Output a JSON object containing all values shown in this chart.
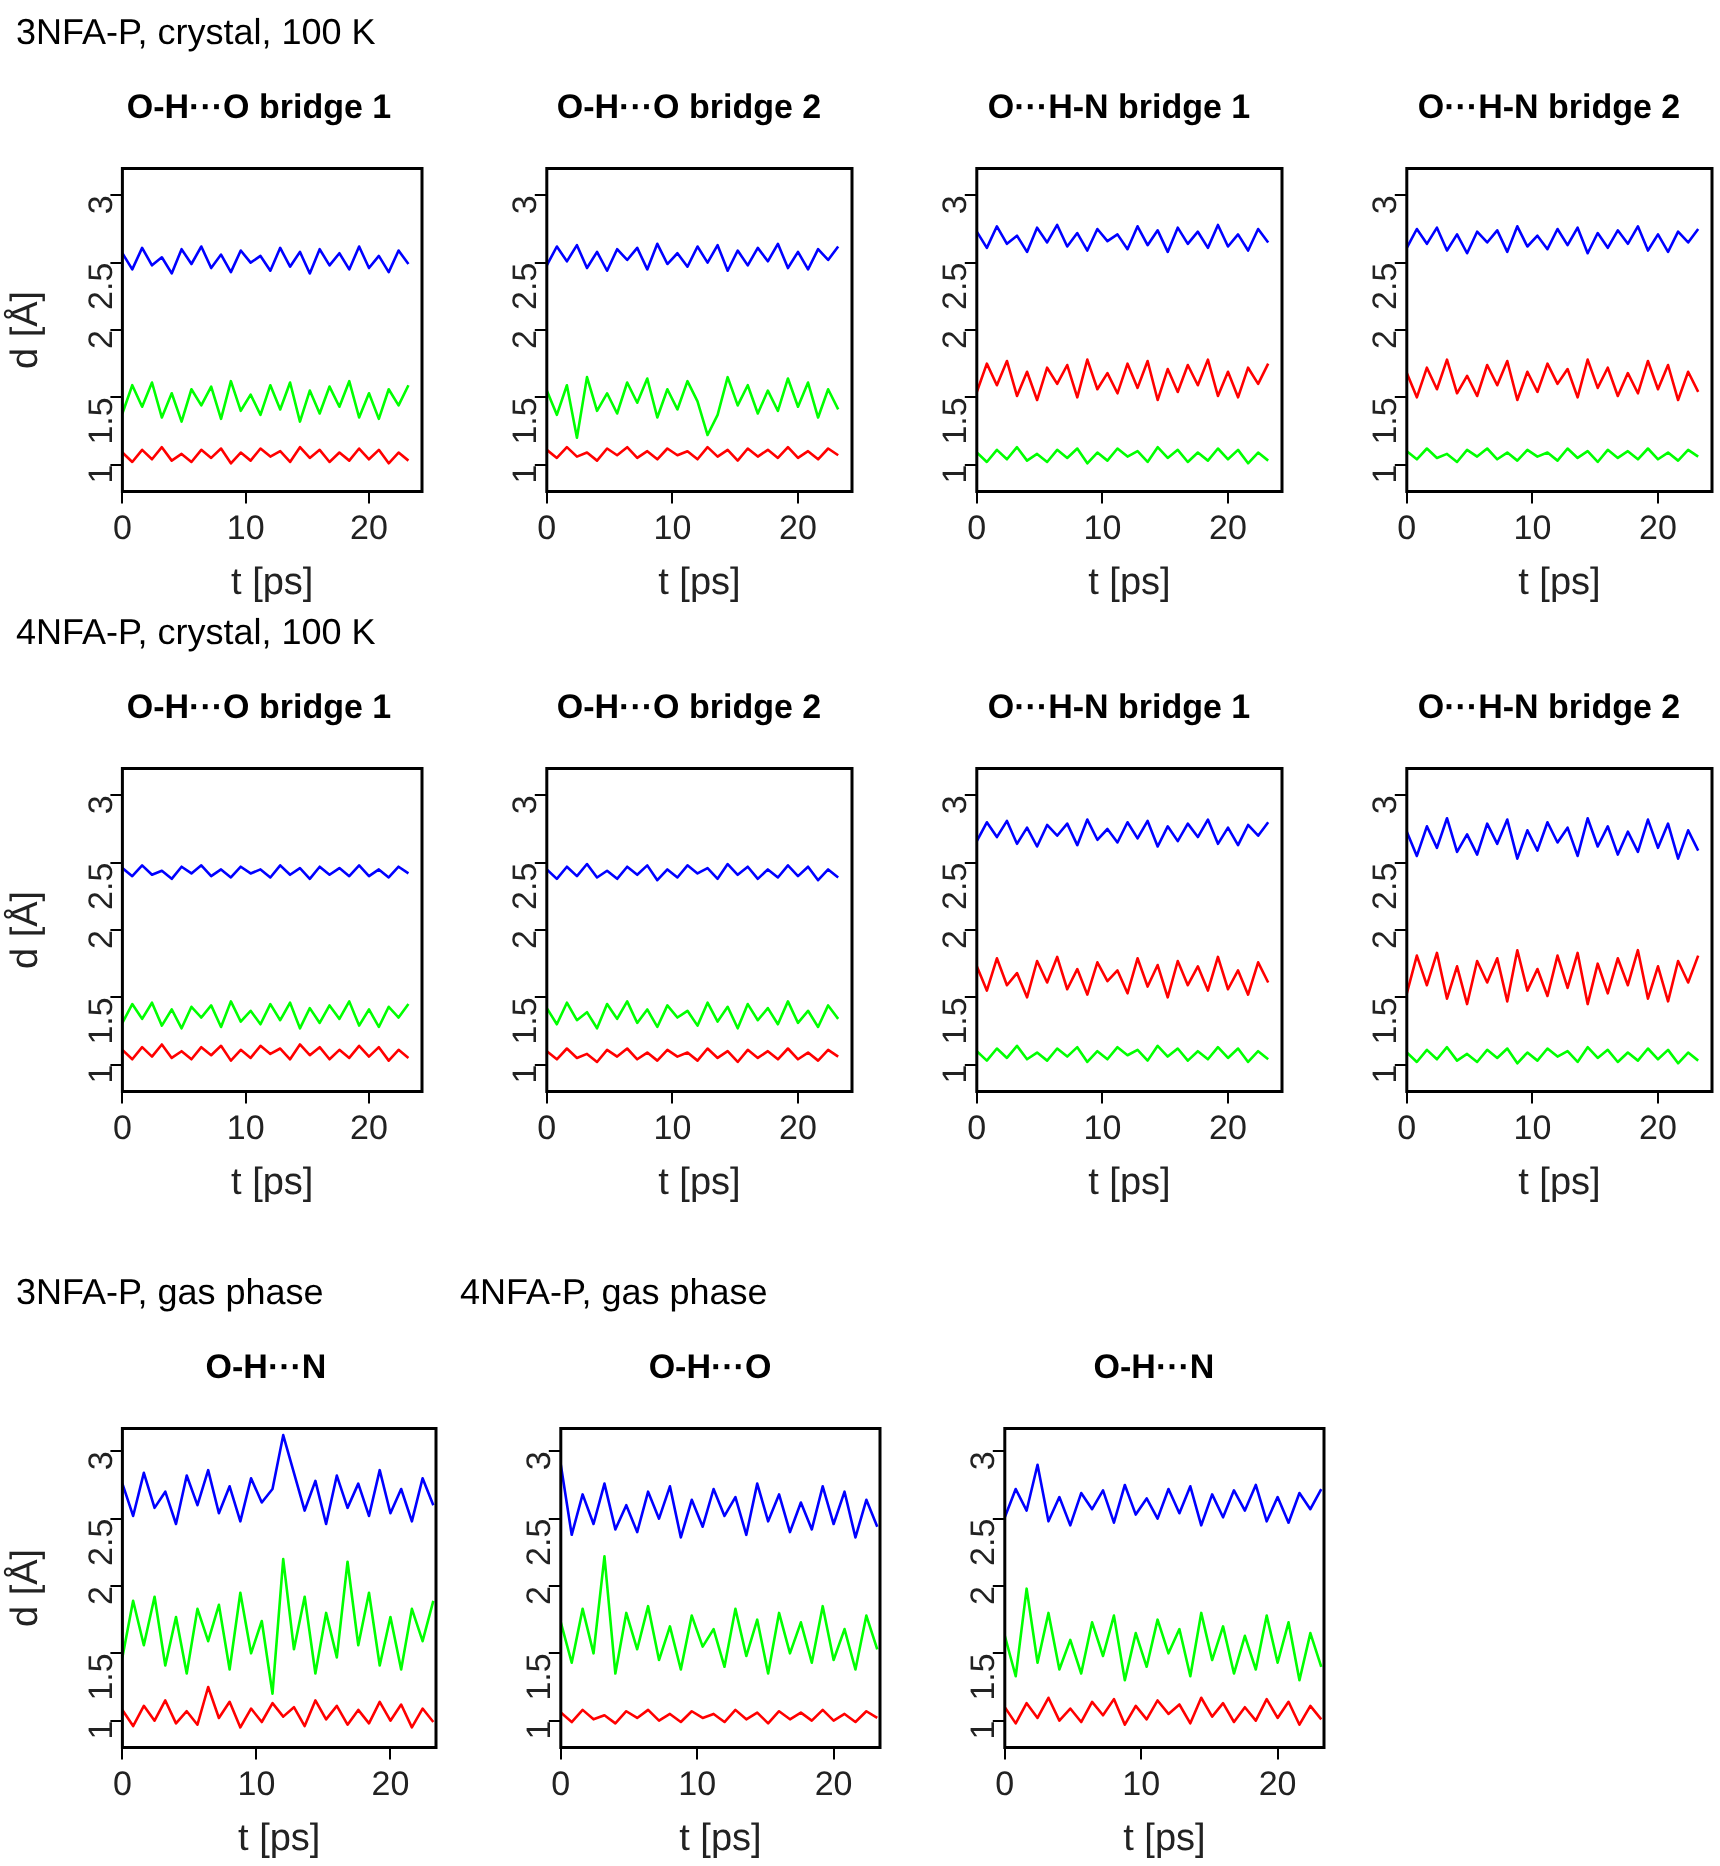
{
  "chart_data": [
    {
      "type": "line",
      "title": "O-H···O bridge 1",
      "annotations": [
        "3NFA-P, crystal, 100 K"
      ],
      "xlabel": "t [ps]",
      "ylabel": "d [Å]",
      "xlim": [
        0,
        24.3
      ],
      "ylim": [
        0.8,
        3.2
      ],
      "xticks": [
        0,
        10,
        20
      ],
      "yticks": [
        1,
        1.5,
        2,
        2.5,
        3
      ],
      "grid": false,
      "legend": false,
      "marker": "none",
      "x": [
        0,
        0.8,
        1.6,
        2.4,
        3.2,
        4,
        4.8,
        5.6,
        6.4,
        7.2,
        8,
        8.8,
        9.6,
        10.4,
        11.2,
        12,
        12.8,
        13.6,
        14.4,
        15.2,
        16,
        16.8,
        17.6,
        18.4,
        19.2,
        20,
        20.8,
        21.6,
        22.4,
        23.2
      ],
      "series": [
        {
          "color": "#0000ff",
          "values": [
            2.57,
            2.45,
            2.61,
            2.48,
            2.54,
            2.42,
            2.6,
            2.49,
            2.62,
            2.46,
            2.56,
            2.43,
            2.59,
            2.5,
            2.55,
            2.44,
            2.61,
            2.47,
            2.58,
            2.42,
            2.6,
            2.48,
            2.57,
            2.45,
            2.62,
            2.46,
            2.55,
            2.43,
            2.59,
            2.49
          ]
        },
        {
          "color": "#00ff00",
          "values": [
            1.38,
            1.59,
            1.43,
            1.61,
            1.35,
            1.53,
            1.32,
            1.56,
            1.44,
            1.58,
            1.34,
            1.62,
            1.4,
            1.52,
            1.37,
            1.59,
            1.41,
            1.61,
            1.32,
            1.55,
            1.38,
            1.58,
            1.43,
            1.62,
            1.35,
            1.53,
            1.34,
            1.56,
            1.44,
            1.59
          ]
        },
        {
          "color": "#ff0000",
          "values": [
            1.09,
            1.02,
            1.11,
            1.04,
            1.13,
            1.03,
            1.08,
            1.02,
            1.11,
            1.05,
            1.12,
            1.01,
            1.09,
            1.03,
            1.12,
            1.06,
            1.1,
            1.02,
            1.13,
            1.05,
            1.11,
            1.02,
            1.09,
            1.03,
            1.12,
            1.04,
            1.11,
            1.01,
            1.09,
            1.03
          ]
        }
      ]
    },
    {
      "type": "line",
      "title": "O-H···O bridge 2",
      "xlabel": "t [ps]",
      "xlim": [
        0,
        24.3
      ],
      "ylim": [
        0.8,
        3.2
      ],
      "xticks": [
        0,
        10,
        20
      ],
      "yticks": [
        1,
        1.5,
        2,
        2.5,
        3
      ],
      "grid": false,
      "legend": false,
      "marker": "none",
      "x": [
        0,
        0.8,
        1.6,
        2.4,
        3.2,
        4,
        4.8,
        5.6,
        6.4,
        7.2,
        8,
        8.8,
        9.6,
        10.4,
        11.2,
        12,
        12.8,
        13.6,
        14.4,
        15.2,
        16,
        16.8,
        17.6,
        18.4,
        19.2,
        20,
        20.8,
        21.6,
        22.4,
        23.2
      ],
      "series": [
        {
          "color": "#0000ff",
          "values": [
            2.48,
            2.62,
            2.51,
            2.63,
            2.46,
            2.58,
            2.44,
            2.6,
            2.52,
            2.61,
            2.45,
            2.64,
            2.49,
            2.57,
            2.47,
            2.62,
            2.5,
            2.63,
            2.44,
            2.59,
            2.48,
            2.61,
            2.51,
            2.64,
            2.46,
            2.58,
            2.45,
            2.6,
            2.52,
            2.62
          ]
        },
        {
          "color": "#00ff00",
          "values": [
            1.55,
            1.37,
            1.59,
            1.2,
            1.65,
            1.4,
            1.53,
            1.38,
            1.61,
            1.46,
            1.64,
            1.35,
            1.56,
            1.41,
            1.62,
            1.47,
            1.22,
            1.37,
            1.65,
            1.44,
            1.59,
            1.38,
            1.55,
            1.4,
            1.64,
            1.43,
            1.61,
            1.35,
            1.56,
            1.41
          ]
        },
        {
          "color": "#ff0000",
          "values": [
            1.11,
            1.05,
            1.13,
            1.06,
            1.09,
            1.03,
            1.12,
            1.07,
            1.13,
            1.05,
            1.1,
            1.04,
            1.12,
            1.07,
            1.1,
            1.04,
            1.13,
            1.06,
            1.11,
            1.03,
            1.12,
            1.06,
            1.11,
            1.05,
            1.13,
            1.05,
            1.1,
            1.04,
            1.12,
            1.07
          ]
        }
      ]
    },
    {
      "type": "line",
      "title": "O···H-N bridge 1",
      "xlabel": "t [ps]",
      "xlim": [
        0,
        24.3
      ],
      "ylim": [
        0.8,
        3.2
      ],
      "xticks": [
        0,
        10,
        20
      ],
      "yticks": [
        1,
        1.5,
        2,
        2.5,
        3
      ],
      "grid": false,
      "legend": false,
      "marker": "none",
      "x": [
        0,
        0.8,
        1.6,
        2.4,
        3.2,
        4,
        4.8,
        5.6,
        6.4,
        7.2,
        8,
        8.8,
        9.6,
        10.4,
        11.2,
        12,
        12.8,
        13.6,
        14.4,
        15.2,
        16,
        16.8,
        17.6,
        18.4,
        19.2,
        20,
        20.8,
        21.6,
        22.4,
        23.2
      ],
      "series": [
        {
          "color": "#0000ff",
          "values": [
            2.73,
            2.61,
            2.77,
            2.64,
            2.7,
            2.58,
            2.76,
            2.65,
            2.78,
            2.62,
            2.72,
            2.59,
            2.75,
            2.66,
            2.71,
            2.6,
            2.77,
            2.63,
            2.74,
            2.58,
            2.76,
            2.64,
            2.73,
            2.61,
            2.78,
            2.62,
            2.71,
            2.59,
            2.75,
            2.65
          ]
        },
        {
          "color": "#00ff00",
          "values": [
            1.09,
            1.02,
            1.11,
            1.04,
            1.13,
            1.03,
            1.08,
            1.02,
            1.11,
            1.05,
            1.12,
            1.01,
            1.09,
            1.03,
            1.12,
            1.06,
            1.1,
            1.02,
            1.13,
            1.05,
            1.11,
            1.02,
            1.09,
            1.03,
            1.12,
            1.04,
            1.11,
            1.01,
            1.09,
            1.03
          ]
        },
        {
          "color": "#ff0000",
          "values": [
            1.54,
            1.75,
            1.59,
            1.77,
            1.51,
            1.69,
            1.48,
            1.72,
            1.6,
            1.74,
            1.5,
            1.78,
            1.56,
            1.68,
            1.53,
            1.75,
            1.57,
            1.77,
            1.48,
            1.71,
            1.54,
            1.74,
            1.59,
            1.78,
            1.51,
            1.69,
            1.5,
            1.72,
            1.6,
            1.75
          ]
        }
      ]
    },
    {
      "type": "line",
      "title": "O···H-N bridge 2",
      "xlabel": "t [ps]",
      "xlim": [
        0,
        24.3
      ],
      "ylim": [
        0.8,
        3.2
      ],
      "xticks": [
        0,
        10,
        20
      ],
      "yticks": [
        1,
        1.5,
        2,
        2.5,
        3
      ],
      "grid": false,
      "legend": false,
      "marker": "none",
      "x": [
        0,
        0.8,
        1.6,
        2.4,
        3.2,
        4,
        4.8,
        5.6,
        6.4,
        7.2,
        8,
        8.8,
        9.6,
        10.4,
        11.2,
        12,
        12.8,
        13.6,
        14.4,
        15.2,
        16,
        16.8,
        17.6,
        18.4,
        19.2,
        20,
        20.8,
        21.6,
        22.4,
        23.2
      ],
      "series": [
        {
          "color": "#0000ff",
          "values": [
            2.61,
            2.75,
            2.64,
            2.76,
            2.59,
            2.71,
            2.57,
            2.73,
            2.65,
            2.74,
            2.58,
            2.77,
            2.62,
            2.7,
            2.6,
            2.75,
            2.63,
            2.76,
            2.57,
            2.72,
            2.61,
            2.74,
            2.64,
            2.77,
            2.59,
            2.71,
            2.58,
            2.73,
            2.65,
            2.75
          ]
        },
        {
          "color": "#00ff00",
          "values": [
            1.1,
            1.04,
            1.12,
            1.05,
            1.08,
            1.02,
            1.11,
            1.06,
            1.12,
            1.04,
            1.09,
            1.03,
            1.11,
            1.06,
            1.09,
            1.03,
            1.12,
            1.05,
            1.1,
            1.02,
            1.11,
            1.05,
            1.1,
            1.04,
            1.12,
            1.04,
            1.09,
            1.03,
            1.11,
            1.06
          ]
        },
        {
          "color": "#ff0000",
          "values": [
            1.68,
            1.5,
            1.72,
            1.56,
            1.78,
            1.53,
            1.66,
            1.51,
            1.74,
            1.59,
            1.77,
            1.48,
            1.69,
            1.54,
            1.75,
            1.6,
            1.71,
            1.5,
            1.78,
            1.57,
            1.72,
            1.51,
            1.68,
            1.53,
            1.77,
            1.56,
            1.74,
            1.48,
            1.69,
            1.54
          ]
        }
      ]
    },
    {
      "type": "line",
      "title": "O-H···O bridge 1",
      "annotations": [
        "4NFA-P, crystal, 100 K"
      ],
      "xlabel": "t [ps]",
      "ylabel": "d [Å]",
      "xlim": [
        0,
        24.3
      ],
      "ylim": [
        0.8,
        3.2
      ],
      "xticks": [
        0,
        10,
        20
      ],
      "yticks": [
        1,
        1.5,
        2,
        2.5,
        3
      ],
      "grid": false,
      "legend": false,
      "marker": "none",
      "x": [
        0,
        0.8,
        1.6,
        2.4,
        3.2,
        4,
        4.8,
        5.6,
        6.4,
        7.2,
        8,
        8.8,
        9.6,
        10.4,
        11.2,
        12,
        12.8,
        13.6,
        14.4,
        15.2,
        16,
        16.8,
        17.6,
        18.4,
        19.2,
        20,
        20.8,
        21.6,
        22.4,
        23.2
      ],
      "series": [
        {
          "color": "#0000ff",
          "values": [
            2.46,
            2.4,
            2.48,
            2.41,
            2.44,
            2.38,
            2.47,
            2.42,
            2.48,
            2.4,
            2.45,
            2.39,
            2.47,
            2.42,
            2.45,
            2.39,
            2.48,
            2.41,
            2.46,
            2.38,
            2.47,
            2.41,
            2.46,
            2.4,
            2.48,
            2.4,
            2.45,
            2.39,
            2.47,
            2.42
          ]
        },
        {
          "color": "#00ff00",
          "values": [
            1.31,
            1.45,
            1.34,
            1.46,
            1.29,
            1.41,
            1.27,
            1.43,
            1.35,
            1.44,
            1.28,
            1.47,
            1.32,
            1.4,
            1.3,
            1.45,
            1.33,
            1.46,
            1.27,
            1.42,
            1.31,
            1.44,
            1.34,
            1.47,
            1.29,
            1.41,
            1.28,
            1.43,
            1.35,
            1.45
          ]
        },
        {
          "color": "#ff0000",
          "values": [
            1.11,
            1.04,
            1.13,
            1.06,
            1.15,
            1.05,
            1.1,
            1.04,
            1.13,
            1.07,
            1.14,
            1.03,
            1.11,
            1.05,
            1.14,
            1.08,
            1.12,
            1.04,
            1.15,
            1.07,
            1.13,
            1.04,
            1.11,
            1.05,
            1.14,
            1.06,
            1.13,
            1.03,
            1.11,
            1.05
          ]
        }
      ]
    },
    {
      "type": "line",
      "title": "O-H···O bridge 2",
      "xlabel": "t [ps]",
      "xlim": [
        0,
        24.3
      ],
      "ylim": [
        0.8,
        3.2
      ],
      "xticks": [
        0,
        10,
        20
      ],
      "yticks": [
        1,
        1.5,
        2,
        2.5,
        3
      ],
      "grid": false,
      "legend": false,
      "marker": "none",
      "x": [
        0,
        0.8,
        1.6,
        2.4,
        3.2,
        4,
        4.8,
        5.6,
        6.4,
        7.2,
        8,
        8.8,
        9.6,
        10.4,
        11.2,
        12,
        12.8,
        13.6,
        14.4,
        15.2,
        16,
        16.8,
        17.6,
        18.4,
        19.2,
        20,
        20.8,
        21.6,
        22.4,
        23.2
      ],
      "series": [
        {
          "color": "#0000ff",
          "values": [
            2.45,
            2.38,
            2.47,
            2.4,
            2.49,
            2.39,
            2.44,
            2.38,
            2.47,
            2.41,
            2.48,
            2.37,
            2.45,
            2.39,
            2.48,
            2.42,
            2.46,
            2.38,
            2.49,
            2.41,
            2.47,
            2.38,
            2.45,
            2.39,
            2.48,
            2.4,
            2.47,
            2.37,
            2.45,
            2.39
          ]
        },
        {
          "color": "#00ff00",
          "values": [
            1.42,
            1.3,
            1.46,
            1.33,
            1.39,
            1.27,
            1.45,
            1.34,
            1.47,
            1.31,
            1.41,
            1.28,
            1.44,
            1.35,
            1.4,
            1.29,
            1.46,
            1.32,
            1.43,
            1.27,
            1.45,
            1.33,
            1.42,
            1.3,
            1.47,
            1.31,
            1.4,
            1.28,
            1.44,
            1.34
          ]
        },
        {
          "color": "#ff0000",
          "values": [
            1.1,
            1.04,
            1.12,
            1.05,
            1.08,
            1.02,
            1.11,
            1.06,
            1.12,
            1.04,
            1.09,
            1.03,
            1.11,
            1.06,
            1.09,
            1.03,
            1.12,
            1.05,
            1.1,
            1.02,
            1.11,
            1.05,
            1.1,
            1.04,
            1.12,
            1.04,
            1.09,
            1.03,
            1.11,
            1.06
          ]
        }
      ]
    },
    {
      "type": "line",
      "title": "O···H-N bridge 1",
      "xlabel": "t [ps]",
      "xlim": [
        0,
        24.3
      ],
      "ylim": [
        0.8,
        3.2
      ],
      "xticks": [
        0,
        10,
        20
      ],
      "yticks": [
        1,
        1.5,
        2,
        2.5,
        3
      ],
      "grid": false,
      "legend": false,
      "marker": "none",
      "x": [
        0,
        0.8,
        1.6,
        2.4,
        3.2,
        4,
        4.8,
        5.6,
        6.4,
        7.2,
        8,
        8.8,
        9.6,
        10.4,
        11.2,
        12,
        12.8,
        13.6,
        14.4,
        15.2,
        16,
        16.8,
        17.6,
        18.4,
        19.2,
        20,
        20.8,
        21.6,
        22.4,
        23.2
      ],
      "series": [
        {
          "color": "#0000ff",
          "values": [
            2.66,
            2.8,
            2.69,
            2.81,
            2.64,
            2.76,
            2.62,
            2.78,
            2.7,
            2.79,
            2.63,
            2.82,
            2.67,
            2.75,
            2.65,
            2.8,
            2.68,
            2.81,
            2.62,
            2.77,
            2.66,
            2.79,
            2.69,
            2.82,
            2.64,
            2.76,
            2.63,
            2.78,
            2.7,
            2.8
          ]
        },
        {
          "color": "#00ff00",
          "values": [
            1.1,
            1.03,
            1.12,
            1.05,
            1.14,
            1.04,
            1.09,
            1.03,
            1.12,
            1.06,
            1.13,
            1.02,
            1.1,
            1.04,
            1.13,
            1.07,
            1.11,
            1.03,
            1.14,
            1.06,
            1.12,
            1.03,
            1.1,
            1.04,
            1.13,
            1.05,
            1.12,
            1.02,
            1.1,
            1.04
          ]
        },
        {
          "color": "#ff0000",
          "values": [
            1.73,
            1.55,
            1.79,
            1.59,
            1.68,
            1.5,
            1.77,
            1.61,
            1.8,
            1.56,
            1.71,
            1.52,
            1.76,
            1.62,
            1.7,
            1.53,
            1.79,
            1.58,
            1.74,
            1.5,
            1.77,
            1.59,
            1.73,
            1.55,
            1.8,
            1.56,
            1.7,
            1.52,
            1.76,
            1.61
          ]
        }
      ]
    },
    {
      "type": "line",
      "title": "O···H-N bridge 2",
      "xlabel": "t [ps]",
      "xlim": [
        0,
        24.3
      ],
      "ylim": [
        0.8,
        3.2
      ],
      "xticks": [
        0,
        10,
        20
      ],
      "yticks": [
        1,
        1.5,
        2,
        2.5,
        3
      ],
      "grid": false,
      "legend": false,
      "marker": "none",
      "x": [
        0,
        0.8,
        1.6,
        2.4,
        3.2,
        4,
        4.8,
        5.6,
        6.4,
        7.2,
        8,
        8.8,
        9.6,
        10.4,
        11.2,
        12,
        12.8,
        13.6,
        14.4,
        15.2,
        16,
        16.8,
        17.6,
        18.4,
        19.2,
        20,
        20.8,
        21.6,
        22.4,
        23.2
      ],
      "series": [
        {
          "color": "#0000ff",
          "values": [
            2.73,
            2.55,
            2.77,
            2.61,
            2.83,
            2.58,
            2.71,
            2.56,
            2.79,
            2.64,
            2.82,
            2.53,
            2.74,
            2.59,
            2.8,
            2.65,
            2.76,
            2.55,
            2.83,
            2.62,
            2.77,
            2.56,
            2.73,
            2.58,
            2.82,
            2.61,
            2.79,
            2.53,
            2.74,
            2.59
          ]
        },
        {
          "color": "#00ff00",
          "values": [
            1.09,
            1.02,
            1.11,
            1.04,
            1.13,
            1.03,
            1.08,
            1.02,
            1.11,
            1.05,
            1.12,
            1.01,
            1.09,
            1.03,
            1.12,
            1.06,
            1.1,
            1.02,
            1.13,
            1.05,
            1.11,
            1.02,
            1.09,
            1.03,
            1.12,
            1.04,
            1.11,
            1.01,
            1.09,
            1.03
          ]
        },
        {
          "color": "#ff0000",
          "values": [
            1.53,
            1.81,
            1.59,
            1.83,
            1.49,
            1.73,
            1.45,
            1.77,
            1.61,
            1.79,
            1.47,
            1.85,
            1.55,
            1.71,
            1.51,
            1.81,
            1.57,
            1.83,
            1.45,
            1.75,
            1.53,
            1.79,
            1.59,
            1.85,
            1.49,
            1.73,
            1.47,
            1.77,
            1.61,
            1.81
          ]
        }
      ]
    },
    {
      "type": "line",
      "title": "O-H···N",
      "annotations": [
        "3NFA-P, gas phase"
      ],
      "xlabel": "t [ps]",
      "ylabel": "d [Å]",
      "xlim": [
        0,
        23.4
      ],
      "ylim": [
        0.8,
        3.17
      ],
      "xticks": [
        0,
        10,
        20
      ],
      "yticks": [
        1,
        1.5,
        2,
        2.5,
        3
      ],
      "grid": false,
      "legend": false,
      "marker": "none",
      "x": [
        0,
        0.8,
        1.6,
        2.4,
        3.2,
        4,
        4.8,
        5.6,
        6.4,
        7.2,
        8,
        8.8,
        9.6,
        10.4,
        11.2,
        12,
        12.8,
        13.6,
        14.4,
        15.2,
        16,
        16.8,
        17.6,
        18.4,
        19.2,
        20,
        20.8,
        21.6,
        22.4,
        23.2
      ],
      "series": [
        {
          "color": "#0000ff",
          "values": [
            2.76,
            2.52,
            2.84,
            2.58,
            2.7,
            2.46,
            2.82,
            2.6,
            2.86,
            2.54,
            2.74,
            2.48,
            2.8,
            2.62,
            2.72,
            3.12,
            2.84,
            2.56,
            2.78,
            2.46,
            2.82,
            2.58,
            2.76,
            2.52,
            2.86,
            2.54,
            2.72,
            2.48,
            2.8,
            2.6
          ]
        },
        {
          "color": "#00ff00",
          "values": [
            1.47,
            1.89,
            1.56,
            1.92,
            1.41,
            1.77,
            1.35,
            1.83,
            1.59,
            1.86,
            1.38,
            1.95,
            1.5,
            1.74,
            1.2,
            2.2,
            1.53,
            1.92,
            1.35,
            1.8,
            1.47,
            2.18,
            1.56,
            1.95,
            1.41,
            1.77,
            1.38,
            1.83,
            1.59,
            1.89
          ]
        },
        {
          "color": "#ff0000",
          "values": [
            1.08,
            0.96,
            1.11,
            1,
            1.15,
            0.98,
            1.07,
            0.97,
            1.25,
            1.02,
            1.14,
            0.95,
            1.09,
            0.99,
            1.13,
            1.03,
            1.1,
            0.96,
            1.15,
            1.01,
            1.11,
            0.97,
            1.08,
            0.98,
            1.14,
            1,
            1.12,
            0.95,
            1.09,
            0.99
          ]
        }
      ]
    },
    {
      "type": "line",
      "title": "O-H···O",
      "annotations": [
        "4NFA-P, gas phase"
      ],
      "xlabel": "t [ps]",
      "xlim": [
        0,
        23.4
      ],
      "ylim": [
        0.8,
        3.17
      ],
      "xticks": [
        0,
        10,
        20
      ],
      "yticks": [
        1,
        1.5,
        2,
        2.5,
        3
      ],
      "grid": false,
      "legend": false,
      "marker": "none",
      "x": [
        0,
        0.8,
        1.6,
        2.4,
        3.2,
        4,
        4.8,
        5.6,
        6.4,
        7.2,
        8,
        8.8,
        9.6,
        10.4,
        11.2,
        12,
        12.8,
        13.6,
        14.4,
        15.2,
        16,
        16.8,
        17.6,
        18.4,
        19.2,
        20,
        20.8,
        21.6,
        22.4,
        23.2
      ],
      "series": [
        {
          "color": "#0000ff",
          "values": [
            2.9,
            2.38,
            2.68,
            2.46,
            2.76,
            2.42,
            2.6,
            2.4,
            2.7,
            2.5,
            2.74,
            2.36,
            2.64,
            2.44,
            2.72,
            2.52,
            2.66,
            2.38,
            2.76,
            2.48,
            2.68,
            2.4,
            2.62,
            2.42,
            2.74,
            2.46,
            2.7,
            2.36,
            2.64,
            2.44
          ]
        },
        {
          "color": "#00ff00",
          "values": [
            1.73,
            1.43,
            1.83,
            1.5,
            2.22,
            1.35,
            1.8,
            1.53,
            1.85,
            1.45,
            1.7,
            1.38,
            1.78,
            1.55,
            1.68,
            1.4,
            1.83,
            1.48,
            1.75,
            1.35,
            1.8,
            1.5,
            1.73,
            1.43,
            1.85,
            1.45,
            1.68,
            1.38,
            1.78,
            1.53
          ]
        },
        {
          "color": "#ff0000",
          "values": [
            1.06,
            0.99,
            1.08,
            1.01,
            1.04,
            0.98,
            1.07,
            1.02,
            1.08,
            1,
            1.05,
            0.99,
            1.07,
            1.02,
            1.05,
            0.99,
            1.08,
            1.01,
            1.06,
            0.98,
            1.07,
            1.01,
            1.06,
            1,
            1.08,
            1,
            1.05,
            0.99,
            1.07,
            1.02
          ]
        }
      ]
    },
    {
      "type": "line",
      "title": "O-H···N",
      "xlabel": "t [ps]",
      "xlim": [
        0,
        23.4
      ],
      "ylim": [
        0.8,
        3.17
      ],
      "xticks": [
        0,
        10,
        20
      ],
      "yticks": [
        1,
        1.5,
        2,
        2.5,
        3
      ],
      "grid": false,
      "legend": false,
      "marker": "none",
      "x": [
        0,
        0.8,
        1.6,
        2.4,
        3.2,
        4,
        4.8,
        5.6,
        6.4,
        7.2,
        8,
        8.8,
        9.6,
        10.4,
        11.2,
        12,
        12.8,
        13.6,
        14.4,
        15.2,
        16,
        16.8,
        17.6,
        18.4,
        19.2,
        20,
        20.8,
        21.6,
        22.4,
        23.2
      ],
      "series": [
        {
          "color": "#0000ff",
          "values": [
            2.51,
            2.72,
            2.56,
            2.9,
            2.48,
            2.66,
            2.45,
            2.69,
            2.57,
            2.71,
            2.47,
            2.75,
            2.53,
            2.65,
            2.5,
            2.72,
            2.54,
            2.74,
            2.45,
            2.68,
            2.51,
            2.71,
            2.56,
            2.75,
            2.48,
            2.66,
            2.47,
            2.69,
            2.57,
            2.72
          ]
        },
        {
          "color": "#00ff00",
          "values": [
            1.63,
            1.33,
            1.98,
            1.43,
            1.8,
            1.38,
            1.6,
            1.35,
            1.73,
            1.48,
            1.78,
            1.3,
            1.65,
            1.4,
            1.75,
            1.5,
            1.68,
            1.33,
            1.8,
            1.45,
            1.7,
            1.35,
            1.63,
            1.38,
            1.78,
            1.43,
            1.73,
            1.3,
            1.65,
            1.4
          ]
        },
        {
          "color": "#ff0000",
          "values": [
            1.1,
            0.98,
            1.13,
            1.02,
            1.17,
            1,
            1.09,
            0.99,
            1.14,
            1.04,
            1.16,
            0.97,
            1.11,
            1.01,
            1.15,
            1.05,
            1.12,
            0.98,
            1.17,
            1.03,
            1.13,
            0.99,
            1.1,
            1,
            1.16,
            1.02,
            1.14,
            0.97,
            1.11,
            1.01
          ]
        }
      ]
    }
  ]
}
